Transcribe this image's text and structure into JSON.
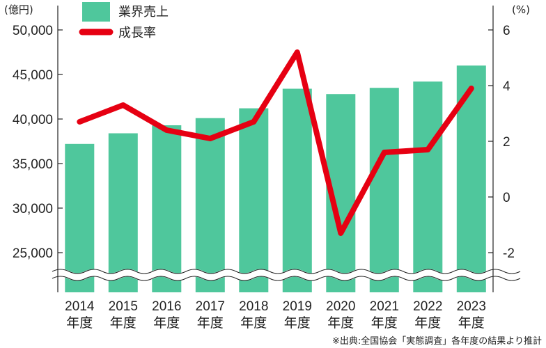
{
  "chart_data": {
    "type": "bar+line",
    "categories": [
      "2014",
      "2015",
      "2016",
      "2017",
      "2018",
      "2019",
      "2020",
      "2021",
      "2022",
      "2023"
    ],
    "category_suffix": "年度",
    "series": [
      {
        "name": "業界売上",
        "type": "bar",
        "axis": "left",
        "color": "#4fc79c",
        "values": [
          37200,
          38400,
          39300,
          40100,
          41200,
          43400,
          42800,
          43500,
          44200,
          46000
        ]
      },
      {
        "name": "成長率",
        "type": "line",
        "axis": "right",
        "color": "#e60012",
        "values": [
          2.7,
          3.3,
          2.4,
          2.1,
          2.7,
          5.2,
          -1.3,
          1.6,
          1.7,
          3.9
        ]
      }
    ],
    "left_axis": {
      "unit": "(億円)",
      "ticks": [
        25000,
        30000,
        35000,
        40000,
        45000,
        50000
      ],
      "tick_labels": [
        "25,000",
        "30,000",
        "35,000",
        "40,000",
        "45,000",
        "50,000"
      ],
      "ylim": [
        22500,
        52000
      ],
      "broken": true
    },
    "right_axis": {
      "unit": "(%)",
      "ticks": [
        -2,
        0,
        2,
        4,
        6
      ],
      "tick_labels": [
        "-2",
        "0",
        "2",
        "4",
        "6"
      ],
      "ylim": [
        -3,
        7
      ]
    },
    "legend": {
      "position": "top-left",
      "entries": [
        "業界売上",
        "成長率"
      ]
    },
    "source": "※出典:全国協会「実態調査」各年度の結果より推計"
  }
}
